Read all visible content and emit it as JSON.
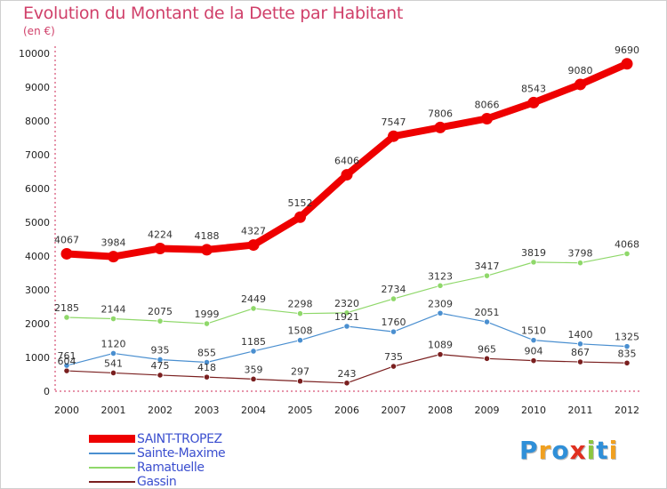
{
  "chart_data": {
    "type": "line",
    "title": "Evolution du Montant de la Dette par Habitant",
    "subtitle": "(en €)",
    "categories": [
      "2000",
      "2001",
      "2002",
      "2003",
      "2004",
      "2005",
      "2006",
      "2007",
      "2008",
      "2009",
      "2010",
      "2011",
      "2012"
    ],
    "y_ticks": [
      "0",
      "1000",
      "2000",
      "3000",
      "4000",
      "5000",
      "6000",
      "7000",
      "8000",
      "9000",
      "10000"
    ],
    "ylim": [
      0,
      10000
    ],
    "grid": false,
    "legend_position": "bottom-left",
    "series": [
      {
        "name": "Gassin",
        "color": "#7a1f1f",
        "values": [
          604,
          541,
          475,
          418,
          359,
          297,
          243,
          735,
          1089,
          965,
          904,
          867,
          835
        ]
      },
      {
        "name": "Sainte-Maxime",
        "color": "#4a8fd0",
        "values": [
          761,
          1120,
          935,
          855,
          1185,
          1508,
          1921,
          1760,
          2309,
          2051,
          1510,
          1400,
          1325
        ]
      },
      {
        "name": "Ramatuelle",
        "color": "#8fd86a",
        "values": [
          2185,
          2144,
          2075,
          1999,
          2449,
          2298,
          2320,
          2734,
          3123,
          3417,
          3819,
          3798,
          4068
        ]
      },
      {
        "name": "SAINT-TROPEZ",
        "color": "#ee0000",
        "values": [
          4067,
          3984,
          4224,
          4188,
          4327,
          5152,
          6406,
          7547,
          7806,
          8066,
          8543,
          9080,
          9690
        ]
      }
    ],
    "legend": [
      {
        "name": "SAINT-TROPEZ",
        "color": "#ee0000"
      },
      {
        "name": "Sainte-Maxime",
        "color": "#4a8fd0"
      },
      {
        "name": "Ramatuelle",
        "color": "#8fd86a"
      },
      {
        "name": "Gassin",
        "color": "#7a1f1f"
      }
    ]
  },
  "logo": {
    "text": "Proxiti",
    "letters": [
      {
        "ch": "P",
        "color": "#2f8fd8"
      },
      {
        "ch": "r",
        "color": "#f0a020"
      },
      {
        "ch": "o",
        "color": "#2f8fd8"
      },
      {
        "ch": "x",
        "color": "#e03020"
      },
      {
        "ch": "i",
        "color": "#8cc63f"
      },
      {
        "ch": "t",
        "color": "#2f8fd8"
      },
      {
        "ch": "i",
        "color": "#f0a020"
      }
    ]
  }
}
